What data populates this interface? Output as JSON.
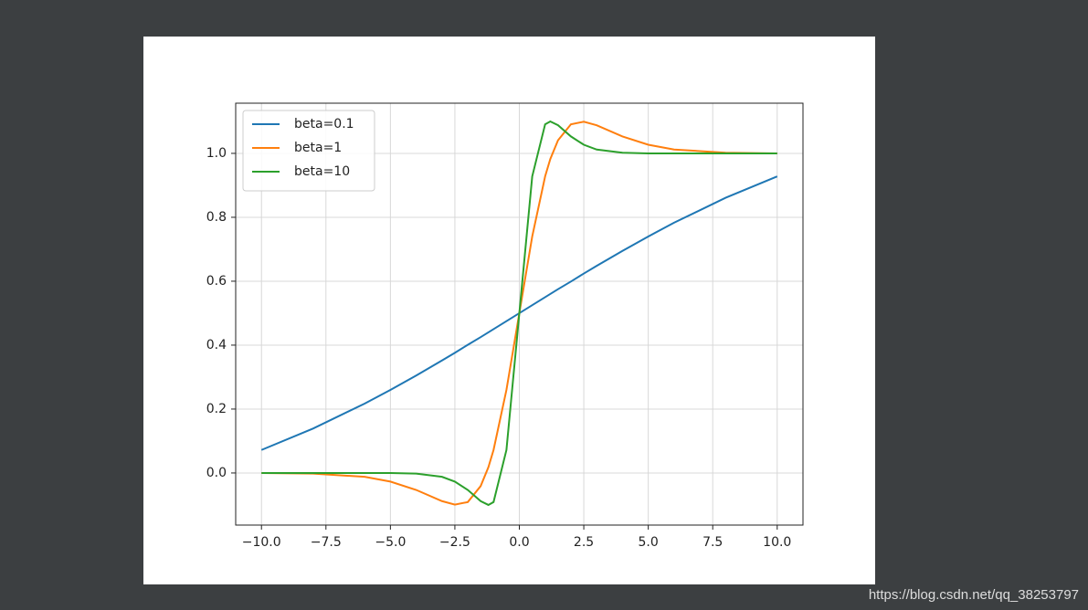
{
  "chart_data": {
    "type": "line",
    "x": [
      -10,
      -8,
      -6,
      -5,
      -4,
      -3,
      -2.5,
      -2,
      -1.5,
      -1.2,
      -1,
      -0.5,
      0,
      0.5,
      1,
      1.2,
      1.5,
      2,
      2.5,
      3,
      4,
      5,
      6,
      8,
      10
    ],
    "series": [
      {
        "name": "beta=0.1",
        "color": "#1f77b4",
        "values": [
          0.072,
          0.139,
          0.217,
          0.26,
          0.305,
          0.352,
          0.376,
          0.401,
          0.425,
          0.44,
          0.45,
          0.475,
          0.5,
          0.525,
          0.55,
          0.56,
          0.575,
          0.599,
          0.624,
          0.648,
          0.695,
          0.74,
          0.783,
          0.861,
          0.928
        ]
      },
      {
        "name": "beta=1",
        "color": "#ff7f0e",
        "values": [
          0.0,
          -0.002,
          -0.012,
          -0.027,
          -0.053,
          -0.088,
          -0.099,
          -0.091,
          -0.041,
          0.018,
          0.072,
          0.26,
          0.5,
          0.74,
          0.928,
          0.982,
          1.041,
          1.091,
          1.099,
          1.088,
          1.053,
          1.027,
          1.012,
          1.002,
          1.0
        ]
      },
      {
        "name": "beta=10",
        "color": "#2ca02c",
        "values": [
          0.0,
          0.0,
          0.0,
          0.0,
          -0.002,
          -0.012,
          -0.027,
          -0.053,
          -0.088,
          -0.1,
          -0.091,
          0.072,
          0.5,
          0.928,
          1.091,
          1.1,
          1.088,
          1.053,
          1.027,
          1.012,
          1.002,
          1.0,
          1.0,
          1.0,
          1.0
        ]
      }
    ],
    "xlim": [
      -11,
      11
    ],
    "ylim": [
      -0.163,
      1.157
    ],
    "xticks": [
      {
        "value": -10,
        "label": "−10.0"
      },
      {
        "value": -7.5,
        "label": "−7.5"
      },
      {
        "value": -5,
        "label": "−5.0"
      },
      {
        "value": -2.5,
        "label": "−2.5"
      },
      {
        "value": 0,
        "label": "0.0"
      },
      {
        "value": 2.5,
        "label": "2.5"
      },
      {
        "value": 5,
        "label": "5.0"
      },
      {
        "value": 7.5,
        "label": "7.5"
      },
      {
        "value": 10,
        "label": "10.0"
      }
    ],
    "yticks": [
      {
        "value": 0,
        "label": "0.0"
      },
      0.2,
      0.4,
      0.6,
      0.8,
      {
        "value": 1,
        "label": "1.0"
      }
    ],
    "grid": true,
    "legend": "upper left"
  },
  "watermark": "https://blog.csdn.net/qq_38253797"
}
